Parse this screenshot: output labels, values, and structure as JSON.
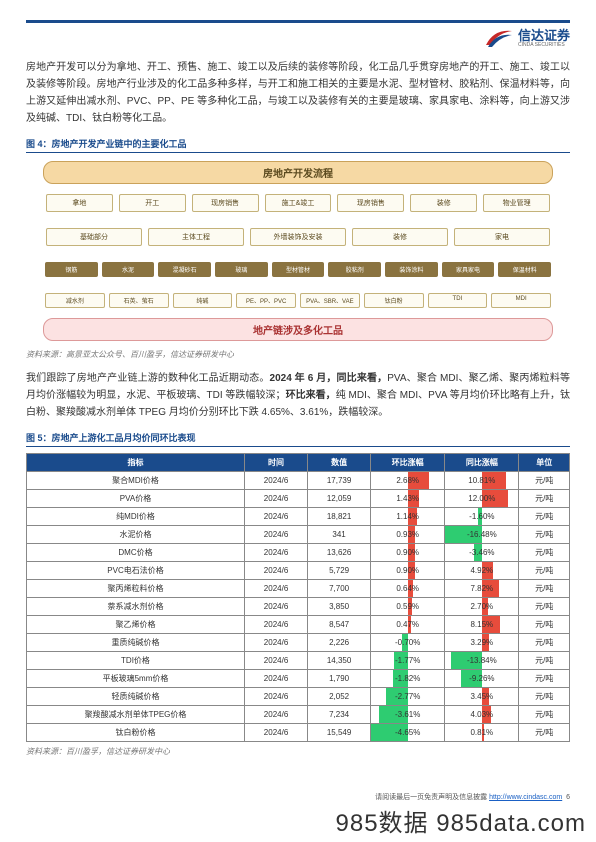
{
  "header": {
    "company_cn": "信达证券",
    "company_en": "CINDA SECURITIES"
  },
  "para1": "房地产开发可以分为拿地、开工、预售、施工、竣工以及后续的装修等阶段，化工品几乎贯穿房地产的开工、施工、竣工以及装修等阶段。房地产行业涉及的化工品多种多样，与开工和施工相关的主要是水泥、型材管材、胶粘剂、保温材料等，向上游又延伸出减水剂、PVC、PP、PE 等多种化工品，与竣工以及装修有关的主要是玻璃、家具家电、涂料等，向上游又涉及纯碱、TDI、钛白粉等化工品。",
  "fig4": {
    "caption": "图 4：房地产开发产业链中的主要化工品",
    "title": "房地产开发流程",
    "row1": [
      "拿地",
      "开工",
      "现房销售",
      "施工&竣工",
      "现房销售",
      "装修",
      "物业管理"
    ],
    "row2": [
      "基础部分",
      "主体工程",
      "外墙装饰及安装",
      "装修",
      "家电"
    ],
    "row3": [
      "钢筋",
      "水泥",
      "混凝砂石",
      "玻璃",
      "型材管材",
      "胶粘剂",
      "装饰涂料",
      "家具家电",
      "保温材料"
    ],
    "row4": [
      "减水剂",
      "石英、萤石",
      "纯碱",
      "PE、PP、PVC",
      "PVA、SBR、VAE",
      "钛白粉",
      "TDI",
      "MDI"
    ],
    "bottom": "地产链涉及多化工品",
    "source": "资料来源：高景亚太公众号、百川盈孚，信达证券研发中心"
  },
  "para2_a": "我们跟踪了房地产产业链上游的数种化工品近期动态。",
  "para2_b": "2024 年 6 月，同比来看，",
  "para2_c": "PVA、聚合 MDI、聚乙烯、聚丙烯粒料等月均价涨幅较为明显，水泥、平板玻璃、TDI 等跌幅较深；",
  "para2_d": "环比来看，",
  "para2_e": "纯 MDI、聚合 MDI、PVA 等月均价环比略有上升，钛白粉、聚羧酸减水剂单体 TPEG 月均价分别环比下跌 4.65%、3.61%，跌幅较深。",
  "fig5": {
    "caption": "图 5：房地产上游化工品月均价同环比表现",
    "headers": [
      "指标",
      "时间",
      "数值",
      "环比涨幅",
      "同比涨幅",
      "单位"
    ],
    "rows": [
      {
        "name": "聚合MDI价格",
        "time": "2024/6",
        "value": "17,739",
        "mom": 2.68,
        "yoy": 10.81,
        "unit": "元/吨"
      },
      {
        "name": "PVA价格",
        "time": "2024/6",
        "value": "12,059",
        "mom": 1.43,
        "yoy": 12.0,
        "unit": "元/吨"
      },
      {
        "name": "纯MDI价格",
        "time": "2024/6",
        "value": "18,821",
        "mom": 1.14,
        "yoy": -1.6,
        "unit": "元/吨"
      },
      {
        "name": "水泥价格",
        "time": "2024/6",
        "value": "341",
        "mom": 0.93,
        "yoy": -16.48,
        "unit": "元/吨"
      },
      {
        "name": "DMC价格",
        "time": "2024/6",
        "value": "13,626",
        "mom": 0.9,
        "yoy": -3.46,
        "unit": "元/吨"
      },
      {
        "name": "PVC电石法价格",
        "time": "2024/6",
        "value": "5,729",
        "mom": 0.9,
        "yoy": 4.92,
        "unit": "元/吨"
      },
      {
        "name": "聚丙烯粒料价格",
        "time": "2024/6",
        "value": "7,700",
        "mom": 0.64,
        "yoy": 7.82,
        "unit": "元/吨"
      },
      {
        "name": "萘系减水剂价格",
        "time": "2024/6",
        "value": "3,850",
        "mom": 0.59,
        "yoy": 2.7,
        "unit": "元/吨"
      },
      {
        "name": "聚乙烯价格",
        "time": "2024/6",
        "value": "8,547",
        "mom": 0.47,
        "yoy": 8.15,
        "unit": "元/吨"
      },
      {
        "name": "重质纯碱价格",
        "time": "2024/6",
        "value": "2,226",
        "mom": -0.7,
        "yoy": 3.29,
        "unit": "元/吨"
      },
      {
        "name": "TDI价格",
        "time": "2024/6",
        "value": "14,350",
        "mom": -1.77,
        "yoy": -13.84,
        "unit": "元/吨"
      },
      {
        "name": "平板玻璃5mm价格",
        "time": "2024/6",
        "value": "1,790",
        "mom": -1.82,
        "yoy": -9.26,
        "unit": "元/吨"
      },
      {
        "name": "轻质纯碱价格",
        "time": "2024/6",
        "value": "2,052",
        "mom": -2.77,
        "yoy": 3.45,
        "unit": "元/吨"
      },
      {
        "name": "聚羧酸减水剂单体TPEG价格",
        "time": "2024/6",
        "value": "7,234",
        "mom": -3.61,
        "yoy": 4.03,
        "unit": "元/吨"
      },
      {
        "name": "钛白粉价格",
        "time": "2024/6",
        "value": "15,549",
        "mom": -4.65,
        "yoy": 0.81,
        "unit": "元/吨"
      }
    ],
    "source": "资料来源：百川盈孚，信达证券研发中心",
    "mom_max_abs": 4.65,
    "yoy_max_abs": 16.48
  },
  "footer": {
    "text": "请阅读最后一页免责声明及信息披露",
    "url": "http://www.cindasc.com",
    "page": "6"
  },
  "watermark": "985数据 985data.com"
}
